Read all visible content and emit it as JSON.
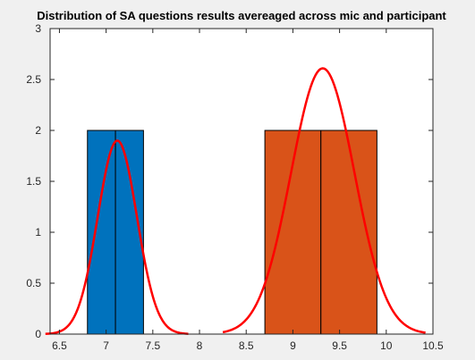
{
  "chart_data": {
    "type": "bar",
    "title": "Distribution of SA questions results avereaged across mic and participant",
    "xlabel": "",
    "ylabel": "",
    "xlim": [
      6.4,
      10.5
    ],
    "ylim": [
      0,
      3
    ],
    "xticks": [
      6.5,
      7,
      7.5,
      8,
      8.5,
      9,
      9.5,
      10,
      10.5
    ],
    "xtick_labels": [
      "6.5",
      "7",
      "7.5",
      "8",
      "8.5",
      "9",
      "9.5",
      "10",
      "10.5"
    ],
    "yticks": [
      0,
      0.5,
      1,
      1.5,
      2,
      2.5,
      3
    ],
    "ytick_labels": [
      "0",
      "0.5",
      "1",
      "1.5",
      "2",
      "2.5",
      "3"
    ],
    "grid": false,
    "histograms": [
      {
        "color": "#0072bd",
        "bin_edges": [
          6.8,
          7.1,
          7.4
        ],
        "counts": [
          2,
          2
        ]
      },
      {
        "color": "#d95319",
        "bin_edges": [
          8.7,
          9.3,
          9.9
        ],
        "counts": [
          2,
          2
        ]
      }
    ],
    "fit_curves": [
      {
        "color": "#ff0000",
        "mean": 7.12,
        "sigma": 0.21,
        "peak": 1.9,
        "x_range": [
          6.35,
          7.88
        ]
      },
      {
        "color": "#ff0000",
        "mean": 9.32,
        "sigma": 0.34,
        "peak": 2.61,
        "x_range": [
          8.25,
          10.42
        ]
      }
    ]
  }
}
